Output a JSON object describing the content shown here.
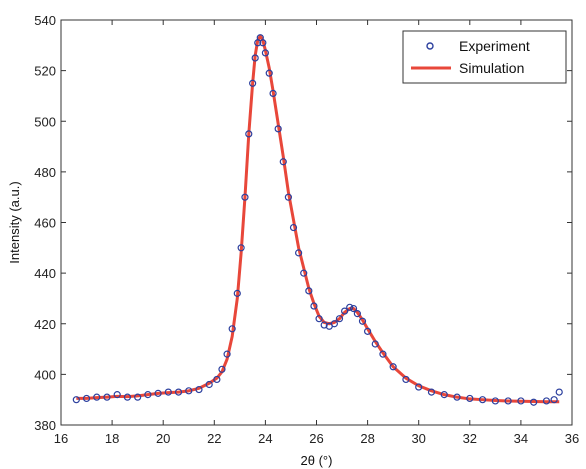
{
  "chart_data": {
    "type": "scatter",
    "xlabel": "2θ (°)",
    "ylabel": "Intensity (a.u.)",
    "xlim": [
      16,
      36
    ],
    "ylim": [
      380,
      540
    ],
    "xticks": [
      16,
      18,
      20,
      22,
      24,
      26,
      28,
      30,
      32,
      34,
      36
    ],
    "yticks": [
      380,
      400,
      420,
      440,
      460,
      480,
      500,
      520,
      540
    ],
    "grid": false,
    "legend_position": "top-right",
    "series": [
      {
        "name": "Experiment",
        "style": "markers",
        "marker": "open-circle",
        "color": "#2b3f9e",
        "x": [
          16.6,
          17.0,
          17.4,
          17.8,
          18.2,
          18.6,
          19.0,
          19.4,
          19.8,
          20.2,
          20.6,
          21.0,
          21.4,
          21.8,
          22.1,
          22.3,
          22.5,
          22.7,
          22.9,
          23.05,
          23.2,
          23.35,
          23.5,
          23.6,
          23.7,
          23.8,
          23.9,
          24.0,
          24.15,
          24.3,
          24.5,
          24.7,
          24.9,
          25.1,
          25.3,
          25.5,
          25.7,
          25.9,
          26.1,
          26.3,
          26.5,
          26.7,
          26.9,
          27.1,
          27.3,
          27.45,
          27.6,
          27.8,
          28.0,
          28.3,
          28.6,
          29.0,
          29.5,
          30.0,
          30.5,
          31.0,
          31.5,
          32.0,
          32.5,
          33.0,
          33.5,
          34.0,
          34.5,
          35.0,
          35.3,
          35.5
        ],
        "y": [
          390,
          390.5,
          391,
          391,
          392,
          391,
          391,
          392,
          392.5,
          393,
          393,
          393.5,
          394,
          396,
          398,
          402,
          408,
          418,
          432,
          450,
          470,
          495,
          515,
          525,
          531,
          533,
          531,
          527,
          519,
          511,
          497,
          484,
          470,
          458,
          448,
          440,
          433,
          427,
          422,
          419.5,
          419,
          420,
          422,
          425,
          426.5,
          426,
          424,
          421,
          417,
          412,
          408,
          403,
          398,
          395,
          393,
          392,
          391,
          390.5,
          390,
          389.5,
          389.5,
          389.5,
          389,
          389.5,
          390,
          393
        ]
      },
      {
        "name": "Simulation",
        "style": "line",
        "color": "#e8473a",
        "x": [
          16.6,
          17.0,
          17.4,
          17.8,
          18.2,
          18.6,
          19.0,
          19.4,
          19.8,
          20.2,
          20.6,
          21.0,
          21.4,
          21.8,
          22.1,
          22.3,
          22.5,
          22.7,
          22.9,
          23.05,
          23.2,
          23.35,
          23.5,
          23.6,
          23.7,
          23.8,
          23.9,
          24.0,
          24.15,
          24.3,
          24.5,
          24.7,
          24.9,
          25.1,
          25.3,
          25.5,
          25.7,
          25.9,
          26.1,
          26.3,
          26.5,
          26.7,
          26.9,
          27.1,
          27.3,
          27.45,
          27.6,
          27.8,
          28.0,
          28.3,
          28.6,
          29.0,
          29.5,
          30.0,
          30.5,
          31.0,
          31.5,
          32.0,
          32.5,
          33.0,
          33.5,
          34.0,
          34.5,
          35.0,
          35.5
        ],
        "y": [
          390.5,
          390.5,
          390.8,
          391,
          391.3,
          391.2,
          391.5,
          392,
          392.5,
          392.8,
          393,
          393.5,
          394.5,
          396.5,
          398.5,
          401,
          406,
          415,
          430,
          448,
          470,
          495,
          515,
          526,
          532,
          533.5,
          532,
          528,
          521,
          512,
          499,
          486,
          472,
          461,
          450,
          442,
          434,
          428,
          423,
          420.5,
          420,
          420.5,
          422,
          424.5,
          426,
          426,
          424.5,
          421.5,
          418,
          413,
          408.5,
          403,
          398.5,
          395.5,
          393.5,
          392,
          391,
          390.3,
          390,
          389.7,
          389.5,
          389.4,
          389.3,
          389.2,
          389.2
        ]
      }
    ]
  }
}
